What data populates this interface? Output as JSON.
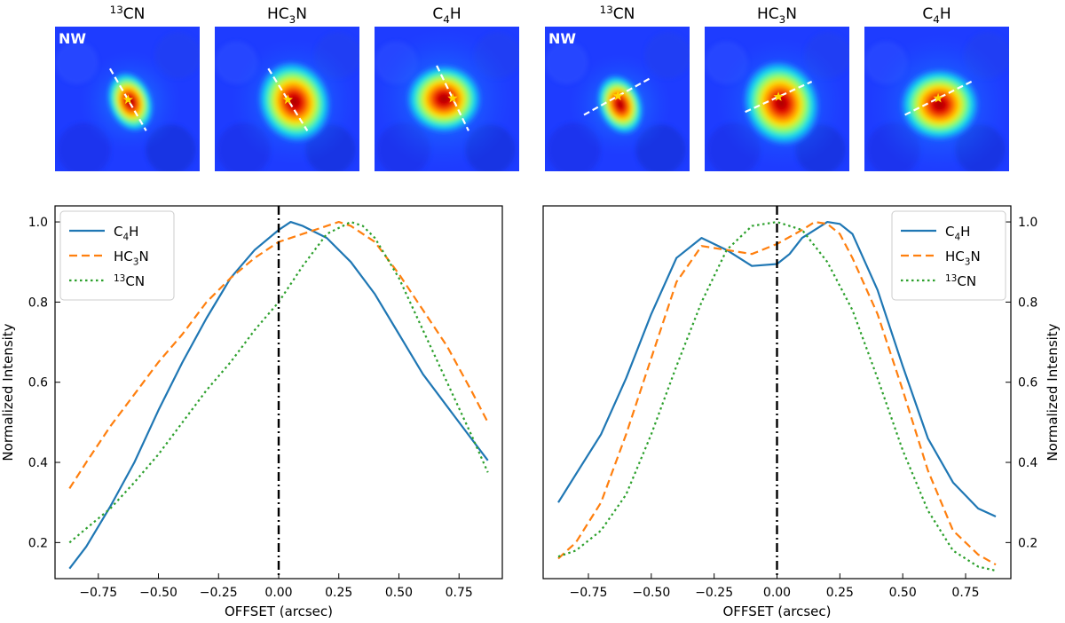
{
  "figure": {
    "top_panels": [
      {
        "species_base": "CN",
        "species_sup": "13",
        "label": "NW",
        "axis": "radial"
      },
      {
        "species_base": "HC",
        "species_sub": "3",
        "species_tail": "N",
        "label": "",
        "axis": "radial"
      },
      {
        "species_base": "C",
        "species_sub": "4",
        "species_tail": "H",
        "label": "",
        "axis": "radial"
      },
      {
        "species_base": "CN",
        "species_sup": "13",
        "label": "NW",
        "axis": "tangential"
      },
      {
        "species_base": "HC",
        "species_sub": "3",
        "species_tail": "N",
        "label": "",
        "axis": "tangential"
      },
      {
        "species_base": "C",
        "species_sub": "4",
        "species_tail": "H",
        "label": "",
        "axis": "tangential"
      }
    ]
  },
  "colors": {
    "c4h": "#1f77b4",
    "hc3n": "#ff7f0e",
    "cn13": "#2ca02c",
    "cut_line": "#ffffff",
    "star": "#ffd700"
  },
  "chart_data": [
    {
      "type": "line",
      "name": "left",
      "xlabel": "OFFSET (arcsec)",
      "ylabel": "Normalized Intensity",
      "xlim": [
        -0.93,
        0.93
      ],
      "ylim": [
        0.11,
        1.04
      ],
      "xticks": [
        "−0.75",
        "−0.50",
        "−0.25",
        "0.00",
        "0.25",
        "0.50",
        "0.75"
      ],
      "xtick_values": [
        -0.75,
        -0.5,
        -0.25,
        0,
        0.25,
        0.5,
        0.75
      ],
      "yticks": [
        "0.2",
        "0.4",
        "0.6",
        "0.8",
        "1.0"
      ],
      "ytick_values": [
        0.2,
        0.4,
        0.6,
        0.8,
        1.0
      ],
      "ytick_side": "left",
      "legend_position": "top-left",
      "vline_x": 0,
      "series": [
        {
          "key": "c4h",
          "name_base": "C",
          "name_sub": "4",
          "name_tail": "H",
          "style": "solid",
          "x": [
            -0.87,
            -0.8,
            -0.7,
            -0.6,
            -0.5,
            -0.4,
            -0.3,
            -0.2,
            -0.1,
            0.0,
            0.05,
            0.1,
            0.2,
            0.3,
            0.4,
            0.5,
            0.6,
            0.7,
            0.8,
            0.87
          ],
          "y": [
            0.135,
            0.19,
            0.29,
            0.4,
            0.53,
            0.65,
            0.76,
            0.86,
            0.93,
            0.98,
            1.0,
            0.99,
            0.96,
            0.9,
            0.82,
            0.72,
            0.62,
            0.54,
            0.46,
            0.405
          ]
        },
        {
          "key": "hc3n",
          "name_base": "HC",
          "name_sub": "3",
          "name_tail": "N",
          "style": "dashed",
          "x": [
            -0.87,
            -0.8,
            -0.7,
            -0.6,
            -0.5,
            -0.4,
            -0.3,
            -0.2,
            -0.1,
            0.0,
            0.1,
            0.2,
            0.25,
            0.3,
            0.4,
            0.5,
            0.6,
            0.7,
            0.8,
            0.87
          ],
          "y": [
            0.335,
            0.4,
            0.49,
            0.57,
            0.65,
            0.72,
            0.8,
            0.86,
            0.91,
            0.95,
            0.97,
            0.99,
            1.0,
            0.99,
            0.95,
            0.87,
            0.78,
            0.69,
            0.58,
            0.5
          ]
        },
        {
          "key": "cn13",
          "name_base": "CN",
          "name_sup": "13",
          "name_tail": "",
          "style": "dotted",
          "x": [
            -0.87,
            -0.8,
            -0.7,
            -0.6,
            -0.5,
            -0.4,
            -0.3,
            -0.2,
            -0.1,
            0.0,
            0.1,
            0.2,
            0.3,
            0.35,
            0.4,
            0.5,
            0.6,
            0.7,
            0.8,
            0.87
          ],
          "y": [
            0.2,
            0.235,
            0.285,
            0.35,
            0.42,
            0.5,
            0.58,
            0.65,
            0.73,
            0.8,
            0.89,
            0.97,
            1.0,
            0.99,
            0.96,
            0.86,
            0.73,
            0.6,
            0.47,
            0.375
          ]
        }
      ]
    },
    {
      "type": "line",
      "name": "right",
      "xlabel": "OFFSET (arcsec)",
      "ylabel": "Normalized Intensity",
      "xlim": [
        -0.93,
        0.93
      ],
      "ylim": [
        0.11,
        1.04
      ],
      "xticks": [
        "−0.75",
        "−0.50",
        "−0.25",
        "0.00",
        "0.25",
        "0.50",
        "0.75"
      ],
      "xtick_values": [
        -0.75,
        -0.5,
        -0.25,
        0,
        0.25,
        0.5,
        0.75
      ],
      "yticks": [
        "0.2",
        "0.4",
        "0.6",
        "0.8",
        "1.0"
      ],
      "ytick_values": [
        0.2,
        0.4,
        0.6,
        0.8,
        1.0
      ],
      "ytick_side": "right",
      "legend_position": "top-right",
      "vline_x": 0,
      "series": [
        {
          "key": "c4h",
          "name_base": "C",
          "name_sub": "4",
          "name_tail": "H",
          "style": "solid",
          "x": [
            -0.87,
            -0.8,
            -0.7,
            -0.6,
            -0.5,
            -0.4,
            -0.3,
            -0.2,
            -0.1,
            0.0,
            0.05,
            0.1,
            0.2,
            0.25,
            0.3,
            0.4,
            0.5,
            0.6,
            0.7,
            0.8,
            0.87
          ],
          "y": [
            0.3,
            0.37,
            0.47,
            0.61,
            0.77,
            0.91,
            0.96,
            0.93,
            0.89,
            0.895,
            0.92,
            0.96,
            1.0,
            0.995,
            0.97,
            0.83,
            0.64,
            0.46,
            0.35,
            0.285,
            0.265
          ]
        },
        {
          "key": "hc3n",
          "name_base": "HC",
          "name_sub": "3",
          "name_tail": "N",
          "style": "dashed",
          "x": [
            -0.87,
            -0.8,
            -0.7,
            -0.6,
            -0.5,
            -0.4,
            -0.3,
            -0.2,
            -0.1,
            0.0,
            0.1,
            0.15,
            0.2,
            0.25,
            0.3,
            0.4,
            0.5,
            0.6,
            0.7,
            0.8,
            0.87
          ],
          "y": [
            0.16,
            0.2,
            0.3,
            0.47,
            0.66,
            0.85,
            0.94,
            0.93,
            0.92,
            0.945,
            0.98,
            1.0,
            0.995,
            0.97,
            0.91,
            0.77,
            0.58,
            0.38,
            0.23,
            0.17,
            0.145
          ]
        },
        {
          "key": "cn13",
          "name_base": "CN",
          "name_sup": "13",
          "name_tail": "",
          "style": "dotted",
          "x": [
            -0.87,
            -0.8,
            -0.7,
            -0.6,
            -0.5,
            -0.4,
            -0.3,
            -0.2,
            -0.1,
            0.0,
            0.1,
            0.2,
            0.3,
            0.4,
            0.5,
            0.6,
            0.7,
            0.8,
            0.87
          ],
          "y": [
            0.165,
            0.18,
            0.23,
            0.32,
            0.47,
            0.64,
            0.8,
            0.93,
            0.99,
            1.0,
            0.98,
            0.9,
            0.78,
            0.61,
            0.43,
            0.28,
            0.18,
            0.14,
            0.13
          ]
        }
      ]
    }
  ]
}
